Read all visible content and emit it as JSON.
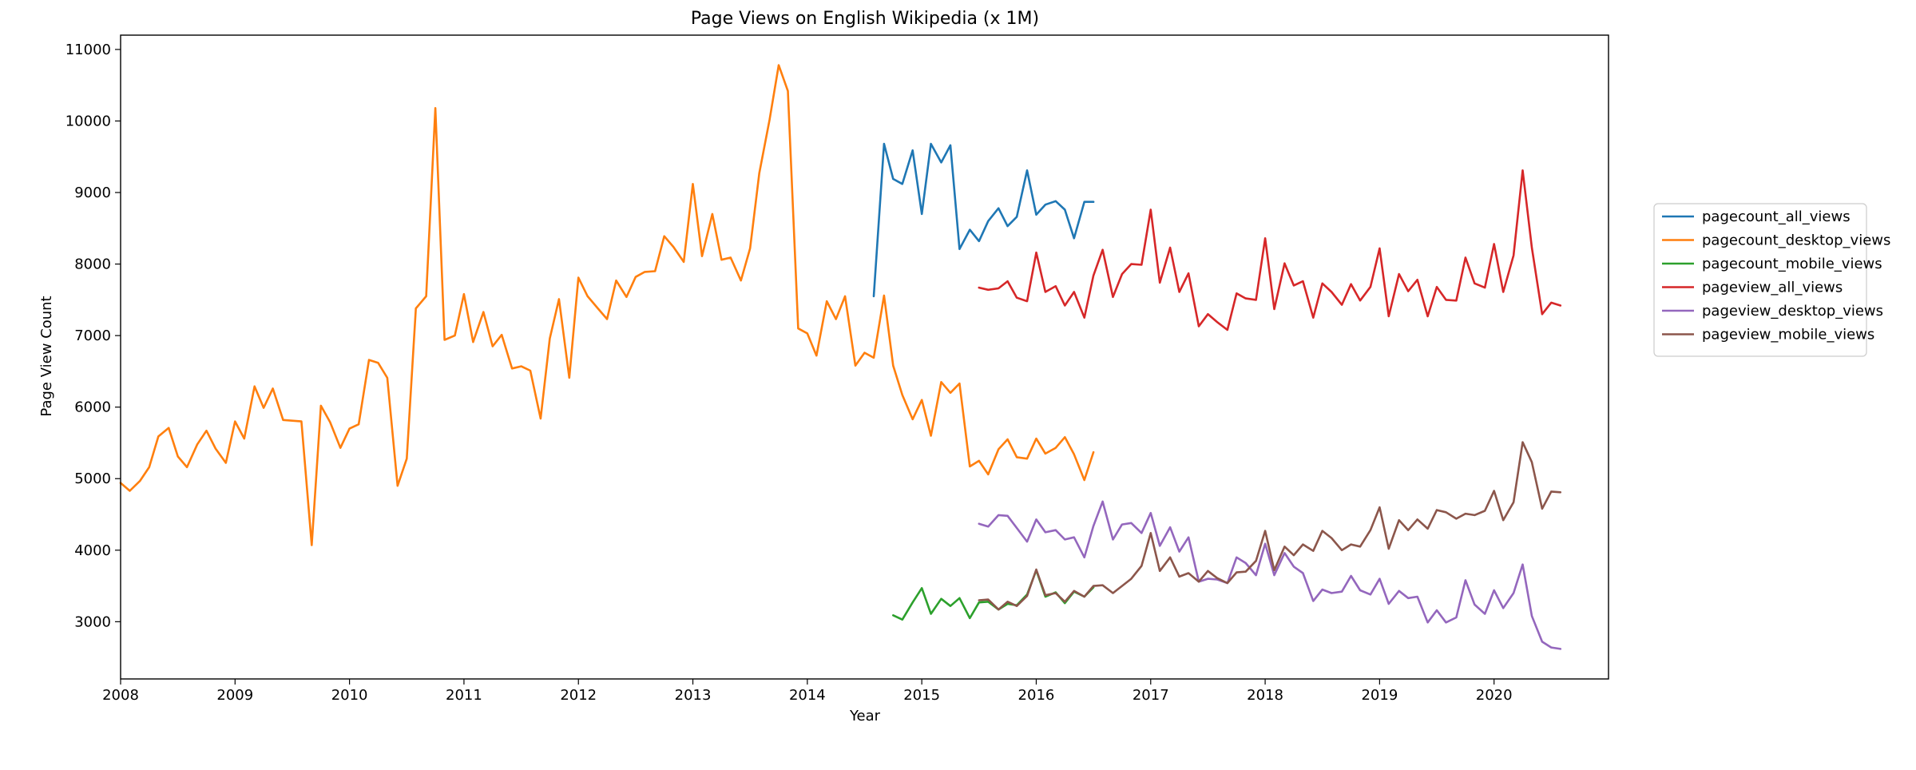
{
  "chart_data": {
    "type": "line",
    "title": "Page Views on English Wikipedia (x 1M)",
    "xlabel": "Year",
    "ylabel": "Page View Count",
    "xlim": [
      2008.0,
      2021.0
    ],
    "ylim": [
      2200,
      11200
    ],
    "xticks": [
      2008,
      2009,
      2010,
      2011,
      2012,
      2013,
      2014,
      2015,
      2016,
      2017,
      2018,
      2019,
      2020
    ],
    "yticks": [
      3000,
      4000,
      5000,
      6000,
      7000,
      8000,
      9000,
      10000,
      11000
    ],
    "legend_position": "right, outside plot",
    "grid": false,
    "series": [
      {
        "name": "pagecount_all_views",
        "color": "#1f77b4",
        "x": [
          2014.58,
          2014.67,
          2014.75,
          2014.83,
          2014.92,
          2015.0,
          2015.08,
          2015.17,
          2015.25,
          2015.33,
          2015.42,
          2015.5,
          2015.58,
          2015.67,
          2015.75,
          2015.83,
          2015.92,
          2016.0,
          2016.08,
          2016.17,
          2016.25,
          2016.33,
          2016.42,
          2016.5
        ],
        "y": [
          7550,
          9680,
          9190,
          9120,
          9590,
          8700,
          9680,
          9420,
          9660,
          8210,
          8480,
          8320,
          8600,
          8780,
          8530,
          8660,
          9310,
          8690,
          8830,
          8880,
          8760,
          8360,
          8870,
          8870
        ]
      },
      {
        "name": "pagecount_desktop_views",
        "color": "#ff7f0e",
        "x": [
          2008.0,
          2008.08,
          2008.17,
          2008.25,
          2008.33,
          2008.42,
          2008.5,
          2008.58,
          2008.67,
          2008.75,
          2008.83,
          2008.92,
          2009.0,
          2009.08,
          2009.17,
          2009.25,
          2009.33,
          2009.42,
          2009.5,
          2009.58,
          2009.67,
          2009.75,
          2009.83,
          2009.92,
          2010.0,
          2010.08,
          2010.17,
          2010.25,
          2010.33,
          2010.42,
          2010.5,
          2010.58,
          2010.67,
          2010.75,
          2010.83,
          2010.92,
          2011.0,
          2011.08,
          2011.17,
          2011.25,
          2011.33,
          2011.42,
          2011.5,
          2011.58,
          2011.67,
          2011.75,
          2011.83,
          2011.92,
          2012.0,
          2012.08,
          2012.17,
          2012.25,
          2012.33,
          2012.42,
          2012.5,
          2012.58,
          2012.67,
          2012.75,
          2012.83,
          2012.92,
          2013.0,
          2013.08,
          2013.17,
          2013.25,
          2013.33,
          2013.42,
          2013.5,
          2013.58,
          2013.67,
          2013.75,
          2013.83,
          2013.92,
          2014.0,
          2014.08,
          2014.17,
          2014.25,
          2014.33,
          2014.42,
          2014.5,
          2014.58,
          2014.67,
          2014.75,
          2014.83,
          2014.92,
          2015.0,
          2015.08,
          2015.17,
          2015.25,
          2015.33,
          2015.42,
          2015.5,
          2015.58,
          2015.67,
          2015.75,
          2015.83,
          2015.92,
          2016.0,
          2016.08,
          2016.17,
          2016.25,
          2016.33,
          2016.42,
          2016.5
        ],
        "y": [
          4940,
          4830,
          4970,
          5160,
          5590,
          5710,
          5310,
          5160,
          5480,
          5670,
          5420,
          5220,
          5800,
          5560,
          6290,
          5990,
          6260,
          5820,
          5810,
          5800,
          4070,
          6020,
          5790,
          5430,
          5700,
          5760,
          6660,
          6620,
          6410,
          4900,
          5280,
          7380,
          7550,
          10180,
          6940,
          7000,
          7580,
          6910,
          7330,
          6850,
          7010,
          6540,
          6570,
          6510,
          5840,
          6960,
          7510,
          6410,
          7810,
          7550,
          7380,
          7230,
          7770,
          7540,
          7820,
          7890,
          7900,
          8390,
          8240,
          8030,
          9120,
          8110,
          8700,
          8060,
          8090,
          7770,
          8220,
          9270,
          10020,
          10780,
          10420,
          7100,
          7030,
          6720,
          7480,
          7230,
          7550,
          6580,
          6760,
          6690,
          7560,
          6580,
          6170,
          5830,
          6100,
          5600,
          6350,
          6200,
          6330,
          5170,
          5250,
          5060,
          5410,
          5550,
          5300,
          5280,
          5560,
          5350,
          5430,
          5580,
          5340,
          4980,
          5370
        ]
      },
      {
        "name": "pagecount_mobile_views",
        "color": "#2ca02c",
        "x": [
          2014.75,
          2014.83,
          2014.92,
          2015.0,
          2015.08,
          2015.17,
          2015.25,
          2015.33,
          2015.42,
          2015.5,
          2015.58,
          2015.67,
          2015.75,
          2015.83,
          2015.92,
          2016.0,
          2016.08,
          2016.17,
          2016.25,
          2016.33,
          2016.42,
          2016.5
        ],
        "y": [
          3090,
          3030,
          3270,
          3470,
          3110,
          3320,
          3220,
          3330,
          3050,
          3270,
          3280,
          3170,
          3250,
          3230,
          3380,
          3720,
          3350,
          3410,
          3260,
          3420,
          3350,
          3480
        ]
      },
      {
        "name": "pageview_all_views",
        "color": "#d62728",
        "x": [
          2015.5,
          2015.58,
          2015.67,
          2015.75,
          2015.83,
          2015.92,
          2016.0,
          2016.08,
          2016.17,
          2016.25,
          2016.33,
          2016.42,
          2016.5,
          2016.58,
          2016.67,
          2016.75,
          2016.83,
          2016.92,
          2017.0,
          2017.08,
          2017.17,
          2017.25,
          2017.33,
          2017.42,
          2017.5,
          2017.58,
          2017.67,
          2017.75,
          2017.83,
          2017.92,
          2018.0,
          2018.08,
          2018.17,
          2018.25,
          2018.33,
          2018.42,
          2018.5,
          2018.58,
          2018.67,
          2018.75,
          2018.83,
          2018.92,
          2019.0,
          2019.08,
          2019.17,
          2019.25,
          2019.33,
          2019.42,
          2019.5,
          2019.58,
          2019.67,
          2019.75,
          2019.83,
          2019.92,
          2020.0,
          2020.08,
          2020.17,
          2020.25,
          2020.33,
          2020.42,
          2020.5,
          2020.58
        ],
        "y": [
          7670,
          7640,
          7660,
          7760,
          7530,
          7480,
          8160,
          7610,
          7690,
          7420,
          7610,
          7250,
          7840,
          8200,
          7540,
          7860,
          8000,
          7990,
          8760,
          7740,
          8230,
          7610,
          7870,
          7130,
          7300,
          7190,
          7080,
          7590,
          7520,
          7500,
          8360,
          7370,
          8010,
          7700,
          7760,
          7250,
          7730,
          7610,
          7430,
          7720,
          7490,
          7680,
          8220,
          7270,
          7860,
          7620,
          7780,
          7270,
          7680,
          7500,
          7490,
          8090,
          7730,
          7670,
          8280,
          7610,
          8120,
          9310,
          8230,
          7300,
          7460,
          7420
        ]
      },
      {
        "name": "pageview_desktop_views",
        "color": "#9467bd",
        "x": [
          2015.5,
          2015.58,
          2015.67,
          2015.75,
          2015.83,
          2015.92,
          2016.0,
          2016.08,
          2016.17,
          2016.25,
          2016.33,
          2016.42,
          2016.5,
          2016.58,
          2016.67,
          2016.75,
          2016.83,
          2016.92,
          2017.0,
          2017.08,
          2017.17,
          2017.25,
          2017.33,
          2017.42,
          2017.5,
          2017.58,
          2017.67,
          2017.75,
          2017.83,
          2017.92,
          2018.0,
          2018.08,
          2018.17,
          2018.25,
          2018.33,
          2018.42,
          2018.5,
          2018.58,
          2018.67,
          2018.75,
          2018.83,
          2018.92,
          2019.0,
          2019.08,
          2019.17,
          2019.25,
          2019.33,
          2019.42,
          2019.5,
          2019.58,
          2019.67,
          2019.75,
          2019.83,
          2019.92,
          2020.0,
          2020.08,
          2020.17,
          2020.25,
          2020.33,
          2020.42,
          2020.5,
          2020.58
        ],
        "y": [
          4370,
          4330,
          4490,
          4480,
          4310,
          4120,
          4430,
          4250,
          4280,
          4150,
          4180,
          3900,
          4340,
          4680,
          4150,
          4360,
          4380,
          4240,
          4520,
          4060,
          4320,
          3980,
          4180,
          3560,
          3600,
          3590,
          3540,
          3900,
          3820,
          3650,
          4090,
          3650,
          3960,
          3770,
          3680,
          3290,
          3450,
          3400,
          3420,
          3640,
          3440,
          3380,
          3600,
          3250,
          3430,
          3330,
          3350,
          2990,
          3160,
          2990,
          3060,
          3580,
          3240,
          3110,
          3440,
          3190,
          3400,
          3800,
          3080,
          2720,
          2640,
          2620
        ]
      },
      {
        "name": "pageview_mobile_views",
        "color": "#8c564b",
        "x": [
          2015.5,
          2015.58,
          2015.67,
          2015.75,
          2015.83,
          2015.92,
          2016.0,
          2016.08,
          2016.17,
          2016.25,
          2016.33,
          2016.42,
          2016.5,
          2016.58,
          2016.67,
          2016.75,
          2016.83,
          2016.92,
          2017.0,
          2017.08,
          2017.17,
          2017.25,
          2017.33,
          2017.42,
          2017.5,
          2017.58,
          2017.67,
          2017.75,
          2017.83,
          2017.92,
          2018.0,
          2018.08,
          2018.17,
          2018.25,
          2018.33,
          2018.42,
          2018.5,
          2018.58,
          2018.67,
          2018.75,
          2018.83,
          2018.92,
          2019.0,
          2019.08,
          2019.17,
          2019.25,
          2019.33,
          2019.42,
          2019.5,
          2019.58,
          2019.67,
          2019.75,
          2019.83,
          2019.92,
          2020.0,
          2020.08,
          2020.17,
          2020.25,
          2020.33,
          2020.42,
          2020.5,
          2020.58
        ],
        "y": [
          3300,
          3310,
          3170,
          3280,
          3220,
          3360,
          3730,
          3370,
          3400,
          3280,
          3430,
          3350,
          3500,
          3510,
          3400,
          3500,
          3600,
          3780,
          4240,
          3710,
          3900,
          3630,
          3680,
          3560,
          3710,
          3610,
          3540,
          3690,
          3700,
          3850,
          4270,
          3720,
          4050,
          3930,
          4080,
          3990,
          4270,
          4170,
          4000,
          4080,
          4050,
          4280,
          4600,
          4020,
          4420,
          4280,
          4430,
          4300,
          4560,
          4530,
          4440,
          4510,
          4490,
          4550,
          4830,
          4420,
          4670,
          5510,
          5230,
          4580,
          4820,
          4810
        ]
      }
    ]
  }
}
